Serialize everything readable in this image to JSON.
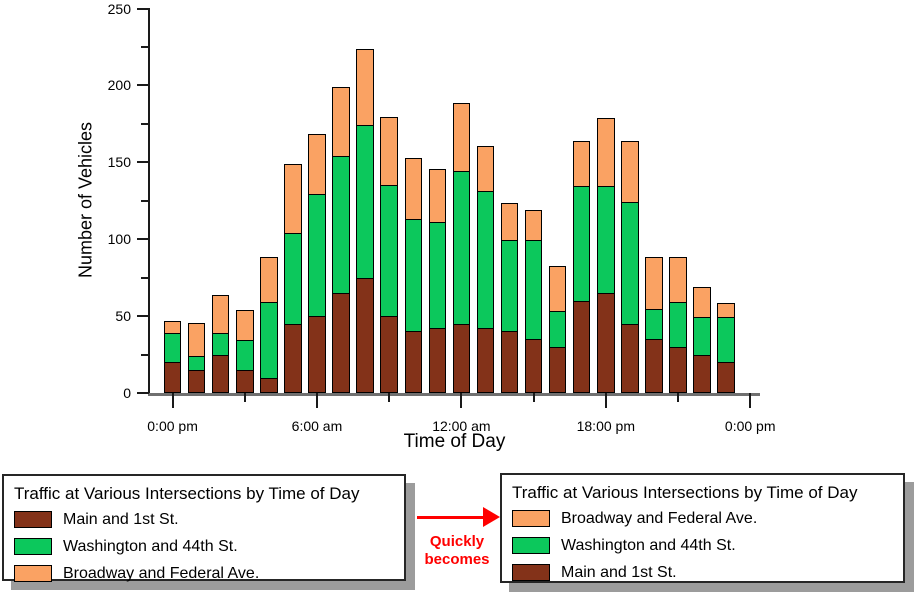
{
  "chart_data": {
    "type": "bar",
    "stacked": true,
    "xlabel": "Time of Day",
    "ylabel": "Number of Vehicles",
    "ylim": [
      0,
      250
    ],
    "grid": false,
    "y_major_ticks": [
      0,
      50,
      100,
      150,
      200,
      250
    ],
    "y_minor_ticks": [
      25,
      75,
      125,
      175,
      225
    ],
    "x_tick_labels": [
      "0:00 pm",
      "6:00 am",
      "12:00 am",
      "18:00 pm",
      "0:00 pm"
    ],
    "x_major_tick_slots": [
      0,
      6,
      12,
      18,
      24
    ],
    "x_minor_tick_slots": [
      3,
      9,
      15,
      21
    ],
    "series": [
      {
        "name": "Main and 1st St.",
        "color": "#833219",
        "values": [
          20,
          15,
          25,
          15,
          10,
          45,
          50,
          65,
          75,
          50,
          40,
          42,
          45,
          42,
          40,
          35,
          30,
          60,
          65,
          45,
          35,
          30,
          25,
          20
        ]
      },
      {
        "name": "Washington and 44th St.",
        "color": "#0cc85c",
        "values": [
          20,
          10,
          15,
          20,
          50,
          60,
          80,
          90,
          100,
          86,
          74,
          70,
          100,
          90,
          60,
          65,
          24,
          75,
          70,
          80,
          20,
          30,
          25,
          30
        ]
      },
      {
        "name": "Broadway and Federal Ave.",
        "color": "#faa263",
        "values": [
          8,
          22,
          25,
          20,
          30,
          45,
          40,
          45,
          50,
          45,
          40,
          35,
          45,
          30,
          25,
          20,
          30,
          30,
          45,
          40,
          35,
          30,
          20,
          10
        ]
      }
    ],
    "totals": [
      48,
      47,
      65,
      55,
      90,
      150,
      170,
      200,
      225,
      181,
      154,
      147,
      190,
      162,
      125,
      120,
      84,
      165,
      180,
      165,
      90,
      90,
      70,
      60
    ]
  },
  "legend_before": {
    "title": "Traffic at Various Intersections by Time of Day",
    "items": [
      {
        "label": "Main and 1st St.",
        "color": "#833219"
      },
      {
        "label": "Washington and 44th St.",
        "color": "#0cc85c"
      },
      {
        "label": "Broadway and Federal Ave.",
        "color": "#faa263"
      }
    ]
  },
  "legend_after": {
    "title": "Traffic at Various Intersections by Time of Day",
    "items": [
      {
        "label": "Broadway and Federal Ave.",
        "color": "#faa263"
      },
      {
        "label": "Washington and 44th St.",
        "color": "#0cc85c"
      },
      {
        "label": "Main and 1st St.",
        "color": "#833219"
      }
    ]
  },
  "transition": {
    "line1": "Quickly",
    "line2": "becomes",
    "arrow_color": "#ff0000"
  }
}
